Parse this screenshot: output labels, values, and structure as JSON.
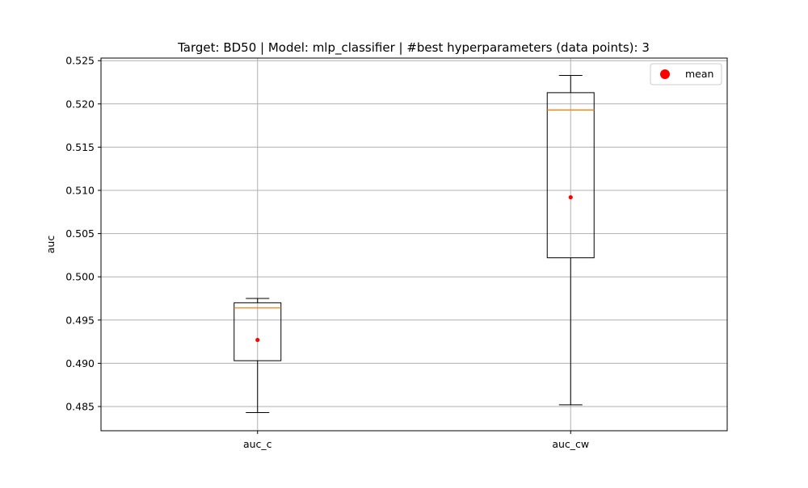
{
  "chart_data": {
    "type": "box",
    "title": "Target: BD50 | Model: mlp_classifier | #best hyperparameters (data points): 3",
    "xlabel": "",
    "ylabel": "auc",
    "categories": [
      "auc_c",
      "auc_cw"
    ],
    "ylim": [
      0.4822,
      0.5253
    ],
    "yticks": [
      "0.485",
      "0.490",
      "0.495",
      "0.500",
      "0.505",
      "0.510",
      "0.515",
      "0.520",
      "0.525"
    ],
    "grid": true,
    "legend": {
      "position": "top-right",
      "entries": [
        "mean"
      ]
    },
    "boxes": [
      {
        "category": "auc_c",
        "whisker_low": 0.4843,
        "q1": 0.4903,
        "median": 0.4964,
        "q3": 0.497,
        "whisker_high": 0.4975,
        "mean": 0.4927
      },
      {
        "category": "auc_cw",
        "whisker_low": 0.4852,
        "q1": 0.5022,
        "median": 0.5193,
        "q3": 0.5213,
        "whisker_high": 0.5233,
        "mean": 0.5092
      }
    ],
    "colors": {
      "box": "#000000",
      "median": "#ff7f0e",
      "mean": "#ff0000",
      "grid": "#b0b0b0"
    }
  }
}
